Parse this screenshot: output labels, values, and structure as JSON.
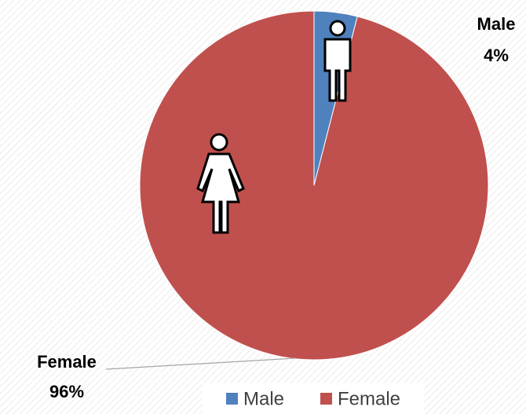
{
  "chart_data": {
    "type": "pie",
    "categories": [
      "Male",
      "Female"
    ],
    "values": [
      4,
      96
    ],
    "value_labels": [
      "4%",
      "96%"
    ],
    "colors": [
      "#4f81bd",
      "#c0504d"
    ],
    "legend": "bottom"
  }
}
